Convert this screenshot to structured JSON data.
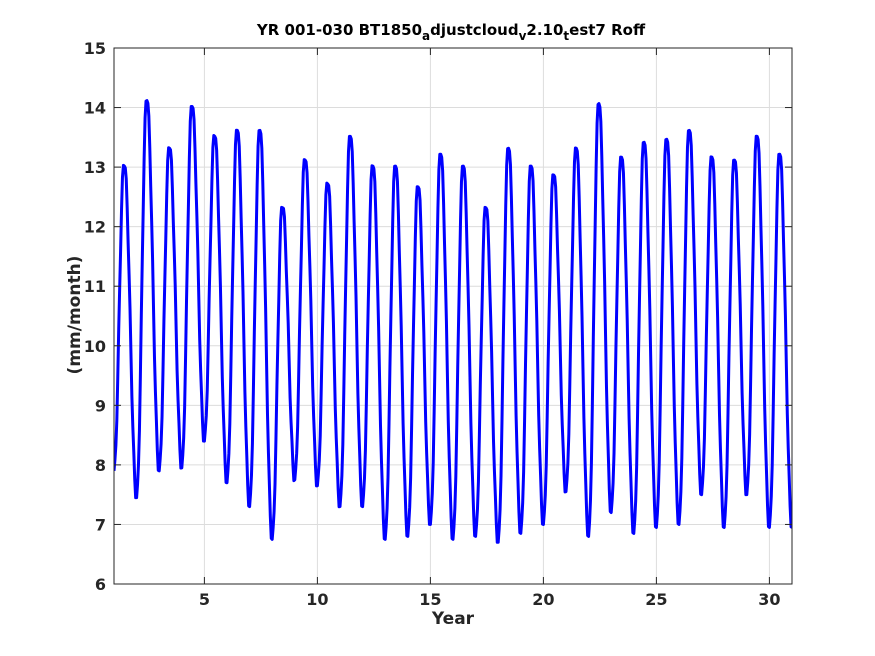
{
  "chart_data": {
    "type": "line",
    "title_parts": [
      "YR 001-030 BT1850",
      "a",
      "djustcloud",
      "v",
      "2.10",
      "t",
      "est7 Roff"
    ],
    "xlabel": "Year",
    "ylabel": "(mm/month)",
    "xlim": [
      1,
      31
    ],
    "ylim": [
      6,
      15
    ],
    "xticks": [
      5,
      10,
      15,
      20,
      25,
      30
    ],
    "yticks": [
      6,
      7,
      8,
      9,
      10,
      11,
      12,
      13,
      14,
      15
    ],
    "grid": true,
    "line_color": "#0000ff",
    "series": [
      {
        "peaks": [
          13.1,
          14.2,
          13.4,
          14.1,
          13.6,
          13.7,
          13.7,
          12.4,
          13.2,
          12.8,
          13.6,
          13.1,
          13.1,
          12.75,
          13.3,
          13.1,
          12.4,
          13.4,
          13.1,
          12.95,
          13.4,
          14.15,
          13.25,
          13.5,
          13.55,
          13.7,
          13.25,
          13.2,
          13.6,
          13.3
        ],
        "troughs": [
          7.9,
          7.45,
          7.9,
          7.95,
          8.4,
          7.7,
          7.3,
          6.75,
          7.75,
          7.65,
          7.3,
          7.3,
          6.75,
          6.8,
          7.0,
          6.75,
          6.8,
          6.7,
          6.85,
          7.0,
          7.55,
          6.8,
          7.2,
          6.85,
          6.95,
          7.0,
          7.5,
          6.95,
          7.5,
          6.95
        ]
      }
    ]
  }
}
